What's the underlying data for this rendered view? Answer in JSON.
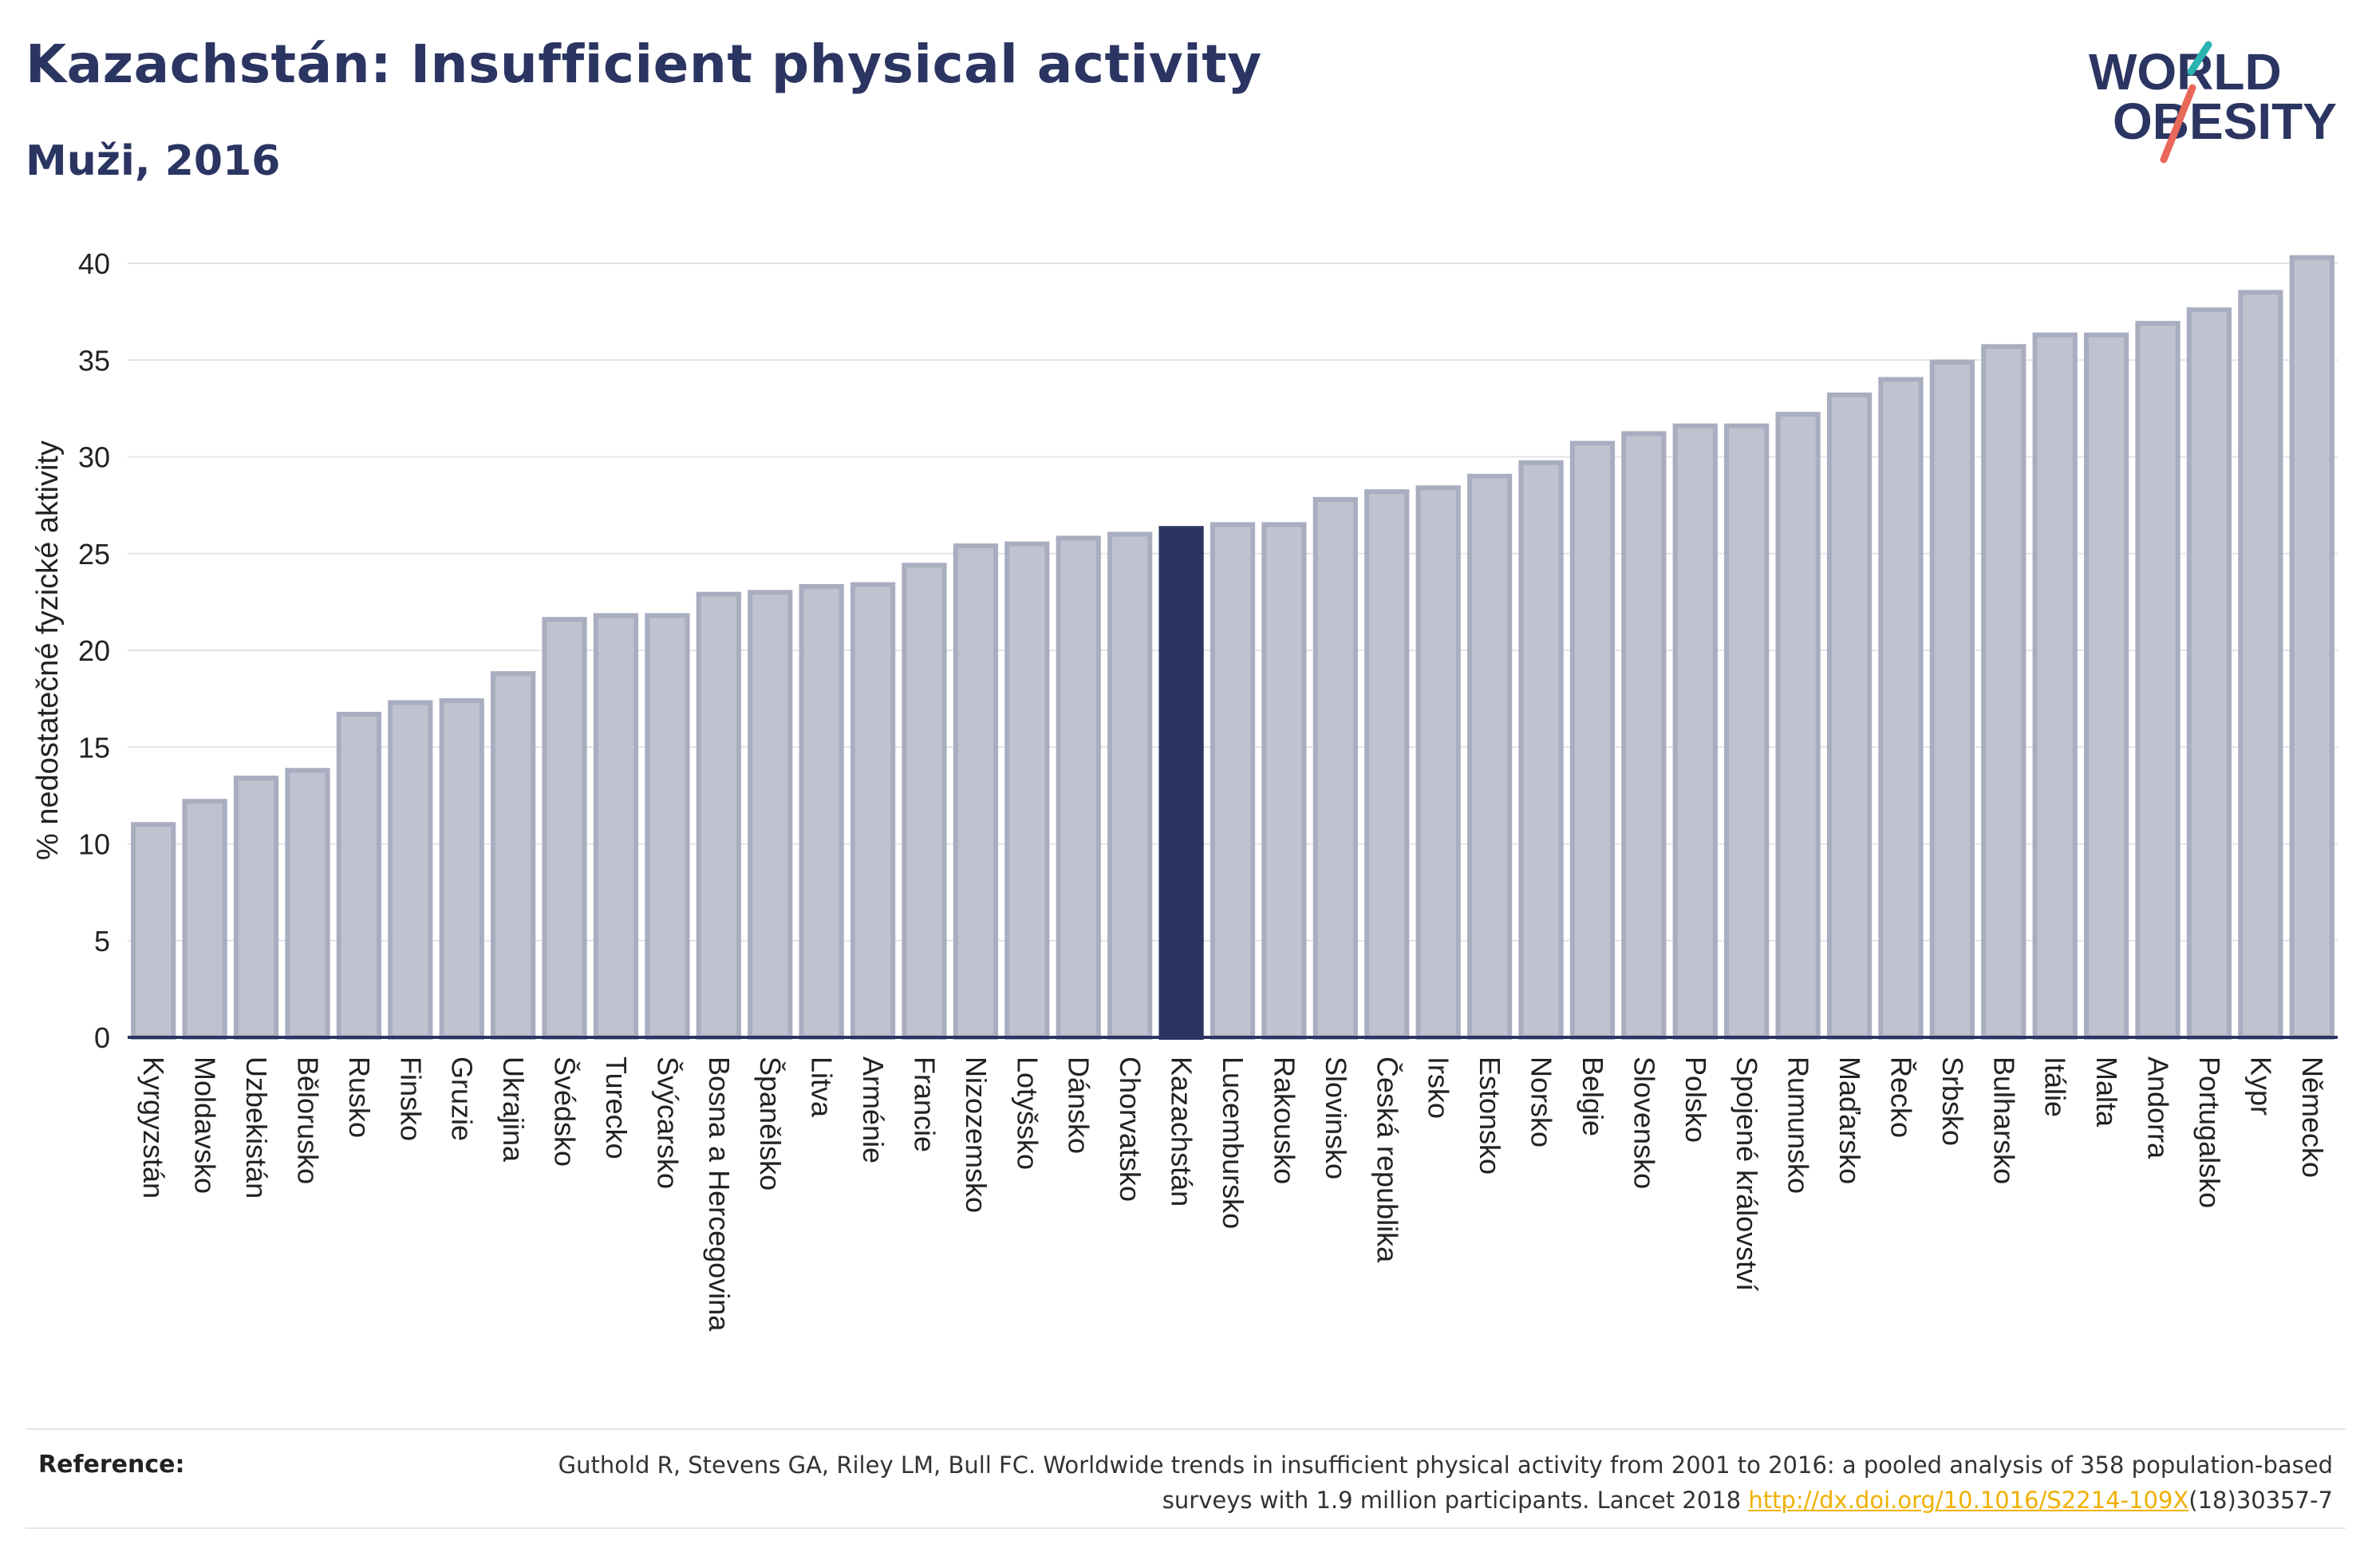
{
  "header": {
    "title": "Kazachstán: Insufficient physical activity",
    "subtitle": "Muži, 2016"
  },
  "logo": {
    "line1": "WORLD",
    "line2": "OBESITY",
    "colors": {
      "text": "#2b3562",
      "slash_teal": "#2ab3b1",
      "slash_coral": "#e8685a"
    }
  },
  "reference": {
    "label": "Reference:",
    "text_before": "Guthold R, Stevens GA, Riley LM, Bull FC. Worldwide trends in insufficient physical activity from 2001 to 2016: a pooled analysis of 358 population-based surveys with 1.9 million participants. Lancet 2018 ",
    "link": "http://dx.doi.org/10.1016/S2214-109X",
    "text_after": "(18)30357-7"
  },
  "chart_data": {
    "type": "bar",
    "ylabel": "% nedostatečné fyzické aktivity",
    "ylim": [
      0,
      40
    ],
    "yticks": [
      0,
      5,
      10,
      15,
      20,
      25,
      30,
      35,
      40
    ],
    "grid": true,
    "highlight": "Kazachstán",
    "colors": {
      "bar": "#bfc2cf",
      "bar_border": "#a9adc0",
      "highlight": "#2b3562",
      "grid": "#e4e4e8",
      "axis": "#2b3562"
    },
    "categories": [
      "Kyrgyzstán",
      "Moldavsko",
      "Uzbekistán",
      "Bělorusko",
      "Rusko",
      "Finsko",
      "Gruzie",
      "Ukrajina",
      "Švédsko",
      "Turecko",
      "Švýcarsko",
      "Bosna a Hercegovina",
      "Španělsko",
      "Litva",
      "Arménie",
      "Francie",
      "Nizozemsko",
      "Lotyšsko",
      "Dánsko",
      "Chorvatsko",
      "Kazachstán",
      "Lucembursko",
      "Rakousko",
      "Slovinsko",
      "Česká republika",
      "Irsko",
      "Estonsko",
      "Norsko",
      "Belgie",
      "Slovensko",
      "Polsko",
      "Spojené království",
      "Rumunsko",
      "Maďarsko",
      "Řecko",
      "Srbsko",
      "Bulharsko",
      "Itálie",
      "Malta",
      "Andorra",
      "Portugalsko",
      "Kypr",
      "Německo"
    ],
    "values": [
      11.0,
      12.2,
      13.4,
      13.8,
      16.7,
      17.3,
      17.4,
      18.8,
      21.6,
      21.8,
      21.8,
      22.9,
      23.0,
      23.3,
      23.4,
      24.4,
      25.4,
      25.5,
      25.8,
      26.0,
      26.3,
      26.5,
      26.5,
      27.8,
      28.2,
      28.4,
      29.0,
      29.7,
      30.7,
      31.2,
      31.6,
      31.6,
      32.2,
      33.2,
      34.0,
      34.9,
      35.7,
      36.3,
      36.3,
      36.9,
      37.6,
      38.5,
      40.3
    ]
  }
}
